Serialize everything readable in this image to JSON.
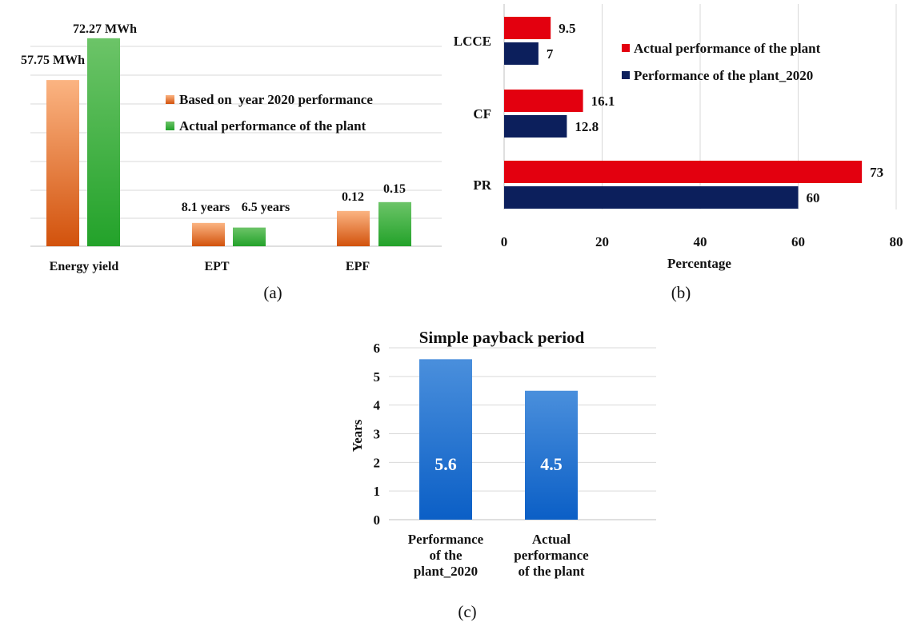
{
  "chart_data": [
    {
      "panel_label": "(a)",
      "type": "bar",
      "categories": [
        "Energy yield",
        "EPT",
        "EPF"
      ],
      "series": [
        {
          "name": "Based on  year 2020 performance",
          "color": "#e8641e",
          "values": [
            57.75,
            8.1,
            0.12
          ],
          "data_labels": [
            "57.75 MWh",
            "8.1 years",
            "0.12"
          ]
        },
        {
          "name": "Actual performance of the plant",
          "color": "#3aaa35",
          "values": [
            72.27,
            6.5,
            0.15
          ],
          "data_labels": [
            "72.27 MWh",
            "6.5 years",
            "0.15"
          ]
        }
      ],
      "grid": true,
      "legend_position": "center-right"
    },
    {
      "panel_label": "(b)",
      "type": "bar",
      "orientation": "horizontal",
      "categories": [
        "LCCE",
        "CF",
        "PR"
      ],
      "series": [
        {
          "name": "Actual performance of the plant",
          "color": "#e3000f",
          "values": [
            9.5,
            16.1,
            73
          ]
        },
        {
          "name": "Performance of the plant_2020",
          "color": "#0c1f5c",
          "values": [
            7,
            12.8,
            60
          ]
        }
      ],
      "xlabel": "Percentage",
      "xlim": [
        0,
        80
      ],
      "xticks": [
        0,
        20,
        40,
        60,
        80
      ],
      "grid": true,
      "legend_position": "top-right"
    },
    {
      "panel_label": "(c)",
      "type": "bar",
      "title": "Simple payback period",
      "categories": [
        [
          "Performance",
          "of the",
          "plant_2020"
        ],
        [
          "Actual",
          "performance",
          "of the plant"
        ]
      ],
      "values": [
        5.6,
        4.5
      ],
      "color": "#1f6fd1",
      "ylabel": "Years",
      "ylim": [
        0,
        6
      ],
      "yticks": [
        0,
        1,
        2,
        3,
        4,
        5,
        6
      ],
      "grid": true
    }
  ]
}
